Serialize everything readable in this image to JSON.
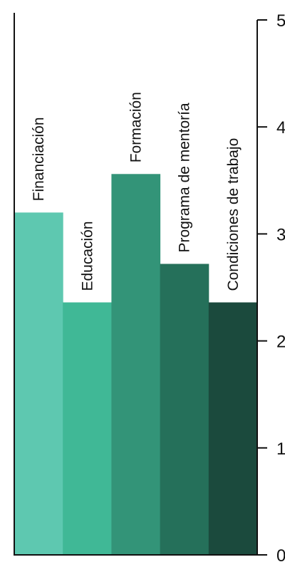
{
  "chart_data": {
    "type": "bar",
    "title": "",
    "xlabel": "",
    "ylabel": "",
    "categories": [
      "Financiación",
      "Educación",
      "Formación",
      "Programa de mentoría",
      "Condiciones de trabajo"
    ],
    "values": [
      3.2,
      2.36,
      3.56,
      2.72,
      2.36
    ],
    "ylim": [
      0,
      5
    ],
    "yticks": [
      "0",
      "1",
      "2",
      "3",
      "4",
      "5"
    ],
    "yaxis_position": "right",
    "grid": false,
    "colors": [
      "#5ec8b0",
      "#40b896",
      "#339478",
      "#25705a",
      "#1b4a3d"
    ],
    "axis_color": "#111111"
  }
}
